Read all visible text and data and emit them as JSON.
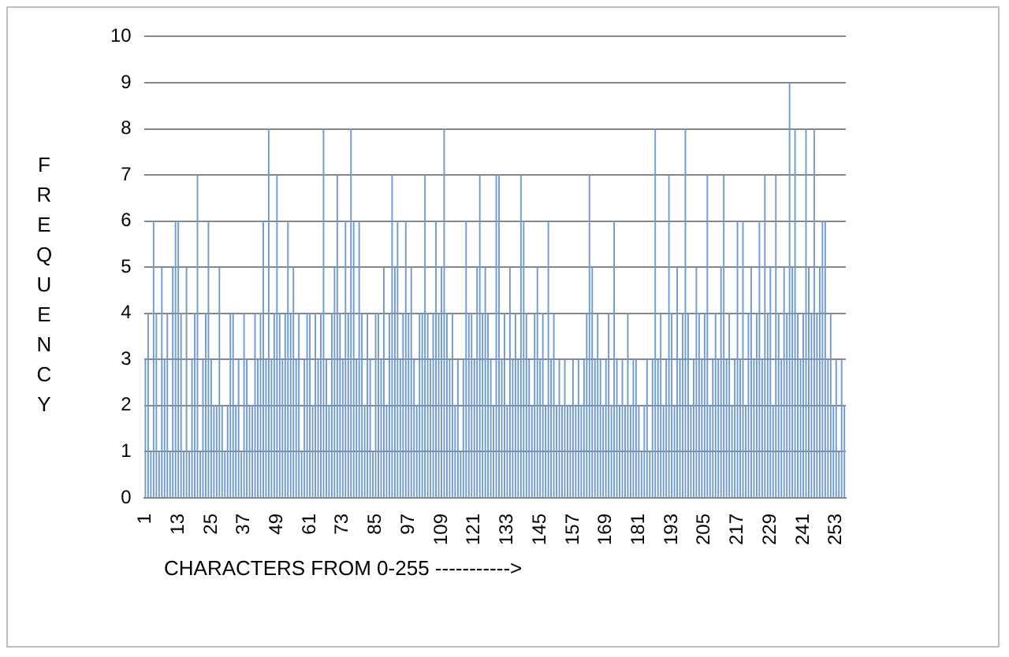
{
  "chart_data": {
    "type": "bar",
    "xlabel": "CHARACTERS FROM 0-255 ----------->",
    "ylabel": "FREQUENCY",
    "categories": [
      "1",
      null,
      null,
      null,
      null,
      null,
      null,
      null,
      null,
      null,
      null,
      null,
      "13",
      null,
      null,
      null,
      null,
      null,
      null,
      null,
      null,
      null,
      null,
      null,
      "25",
      null,
      null,
      null,
      null,
      null,
      null,
      null,
      null,
      null,
      null,
      null,
      "37",
      null,
      null,
      null,
      null,
      null,
      null,
      null,
      null,
      null,
      null,
      null,
      "49",
      null,
      null,
      null,
      null,
      null,
      null,
      null,
      null,
      null,
      null,
      null,
      "61",
      null,
      null,
      null,
      null,
      null,
      null,
      null,
      null,
      null,
      null,
      null,
      "73",
      null,
      null,
      null,
      null,
      null,
      null,
      null,
      null,
      null,
      null,
      null,
      "85",
      null,
      null,
      null,
      null,
      null,
      null,
      null,
      null,
      null,
      null,
      null,
      "97",
      null,
      null,
      null,
      null,
      null,
      null,
      null,
      null,
      null,
      null,
      null,
      "109",
      null,
      null,
      null,
      null,
      null,
      null,
      null,
      null,
      null,
      null,
      null,
      "121",
      null,
      null,
      null,
      null,
      null,
      null,
      null,
      null,
      null,
      null,
      null,
      "133",
      null,
      null,
      null,
      null,
      null,
      null,
      null,
      null,
      null,
      null,
      null,
      "145",
      null,
      null,
      null,
      null,
      null,
      null,
      null,
      null,
      null,
      null,
      null,
      "157",
      null,
      null,
      null,
      null,
      null,
      null,
      null,
      null,
      null,
      null,
      null,
      "169",
      null,
      null,
      null,
      null,
      null,
      null,
      null,
      null,
      null,
      null,
      null,
      "181",
      null,
      null,
      null,
      null,
      null,
      null,
      null,
      null,
      null,
      null,
      null,
      "193",
      null,
      null,
      null,
      null,
      null,
      null,
      null,
      null,
      null,
      null,
      null,
      "205",
      null,
      null,
      null,
      null,
      null,
      null,
      null,
      null,
      null,
      null,
      null,
      "217",
      null,
      null,
      null,
      null,
      null,
      null,
      null,
      null,
      null,
      null,
      null,
      "229",
      null,
      null,
      null,
      null,
      null,
      null,
      null,
      null,
      null,
      null,
      null,
      "241",
      null,
      null,
      null,
      null,
      null,
      null,
      null,
      null,
      null,
      null,
      null,
      "253",
      null,
      null,
      null
    ],
    "values": [
      3,
      4,
      1,
      6,
      4,
      1,
      5,
      3,
      4,
      1,
      5,
      6,
      6,
      4,
      1,
      5,
      1,
      3,
      4,
      7,
      1,
      3,
      4,
      6,
      3,
      2,
      2,
      5,
      2,
      1,
      2,
      4,
      4,
      2,
      3,
      1,
      4,
      3,
      2,
      2,
      4,
      3,
      4,
      6,
      3,
      8,
      3,
      4,
      7,
      4,
      3,
      4,
      6,
      4,
      5,
      3,
      4,
      1,
      3,
      4,
      4,
      2,
      4,
      3,
      4,
      8,
      3,
      2,
      4,
      5,
      7,
      4,
      3,
      6,
      4,
      8,
      6,
      3,
      6,
      4,
      2,
      4,
      3,
      1,
      4,
      4,
      3,
      5,
      2,
      4,
      7,
      5,
      6,
      3,
      4,
      6,
      4,
      5,
      3,
      2,
      4,
      4,
      7,
      4,
      3,
      4,
      6,
      4,
      5,
      8,
      4,
      3,
      4,
      2,
      3,
      1,
      3,
      6,
      4,
      4,
      3,
      5,
      7,
      4,
      5,
      4,
      3,
      2,
      7,
      7,
      3,
      4,
      2,
      5,
      3,
      4,
      3,
      7,
      6,
      4,
      3,
      2,
      4,
      5,
      3,
      4,
      2,
      6,
      3,
      4,
      2,
      3,
      2,
      3,
      2,
      2,
      3,
      2,
      3,
      2,
      3,
      4,
      7,
      5,
      3,
      4,
      3,
      2,
      3,
      4,
      2,
      6,
      3,
      2,
      3,
      2,
      4,
      2,
      3,
      3,
      2,
      1,
      2,
      3,
      1,
      3,
      8,
      3,
      4,
      2,
      3,
      7,
      4,
      2,
      5,
      3,
      4,
      8,
      4,
      2,
      3,
      5,
      4,
      3,
      4,
      7,
      2,
      3,
      4,
      3,
      5,
      7,
      3,
      4,
      2,
      3,
      6,
      3,
      6,
      2,
      4,
      5,
      3,
      4,
      6,
      3,
      7,
      4,
      5,
      2,
      7,
      4,
      3,
      5,
      4,
      9,
      5,
      8,
      4,
      3,
      4,
      8,
      5,
      4,
      8,
      4,
      5,
      6,
      6,
      3,
      4,
      2,
      3,
      1,
      3,
      2
    ],
    "color": "#6f9bd1",
    "ylim": [
      0,
      10
    ],
    "yticks": [
      0,
      1,
      2,
      3,
      4,
      5,
      6,
      7,
      8,
      9,
      10
    ],
    "grid": "y",
    "legend": false
  }
}
